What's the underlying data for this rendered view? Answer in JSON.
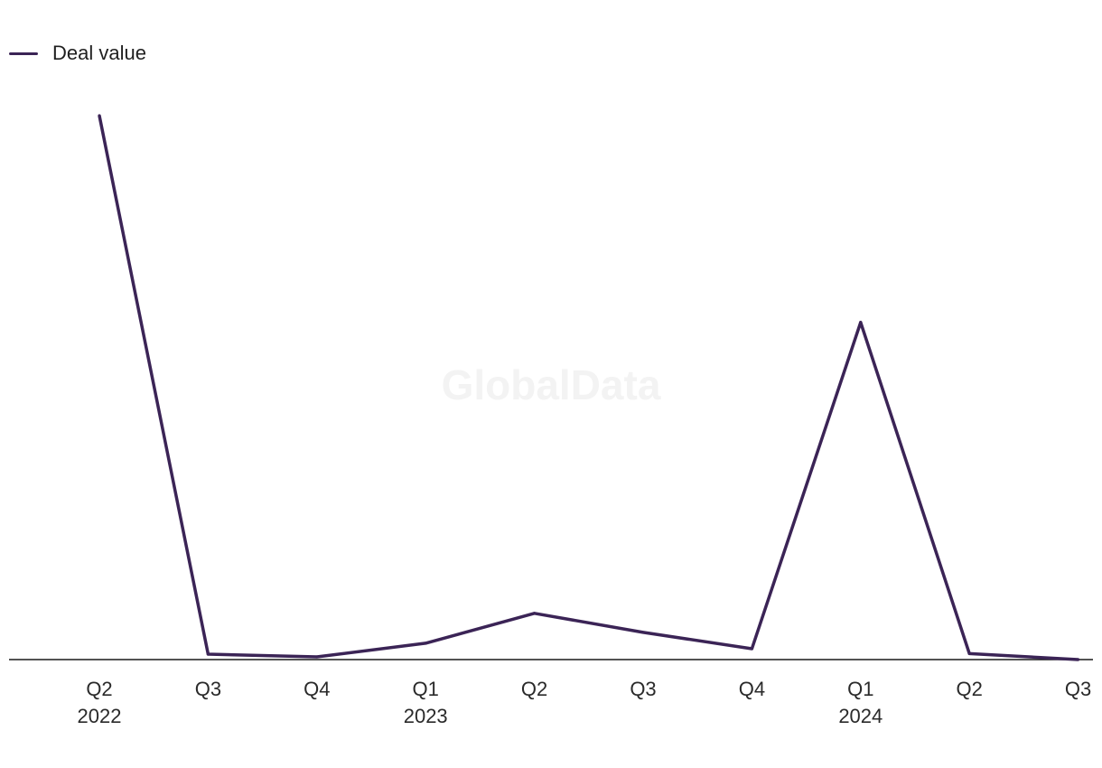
{
  "chart_data": {
    "type": "line",
    "title": "",
    "xlabel": "",
    "ylabel": "",
    "watermark": "GlobalData",
    "categories": [
      {
        "quarter": "Q2",
        "year": "2022"
      },
      {
        "quarter": "Q3",
        "year": ""
      },
      {
        "quarter": "Q4",
        "year": ""
      },
      {
        "quarter": "Q1",
        "year": "2023"
      },
      {
        "quarter": "Q2",
        "year": ""
      },
      {
        "quarter": "Q3",
        "year": ""
      },
      {
        "quarter": "Q4",
        "year": ""
      },
      {
        "quarter": "Q1",
        "year": "2024"
      },
      {
        "quarter": "Q2",
        "year": ""
      },
      {
        "quarter": "Q3",
        "year": ""
      }
    ],
    "series": [
      {
        "name": "Deal value",
        "color": "#3b2456",
        "values": [
          100,
          1,
          0.5,
          3,
          8.5,
          5,
          2,
          62,
          1.1,
          0
        ]
      }
    ],
    "ylim": [
      0,
      100
    ],
    "grid": false,
    "legend_position": "top-left"
  }
}
